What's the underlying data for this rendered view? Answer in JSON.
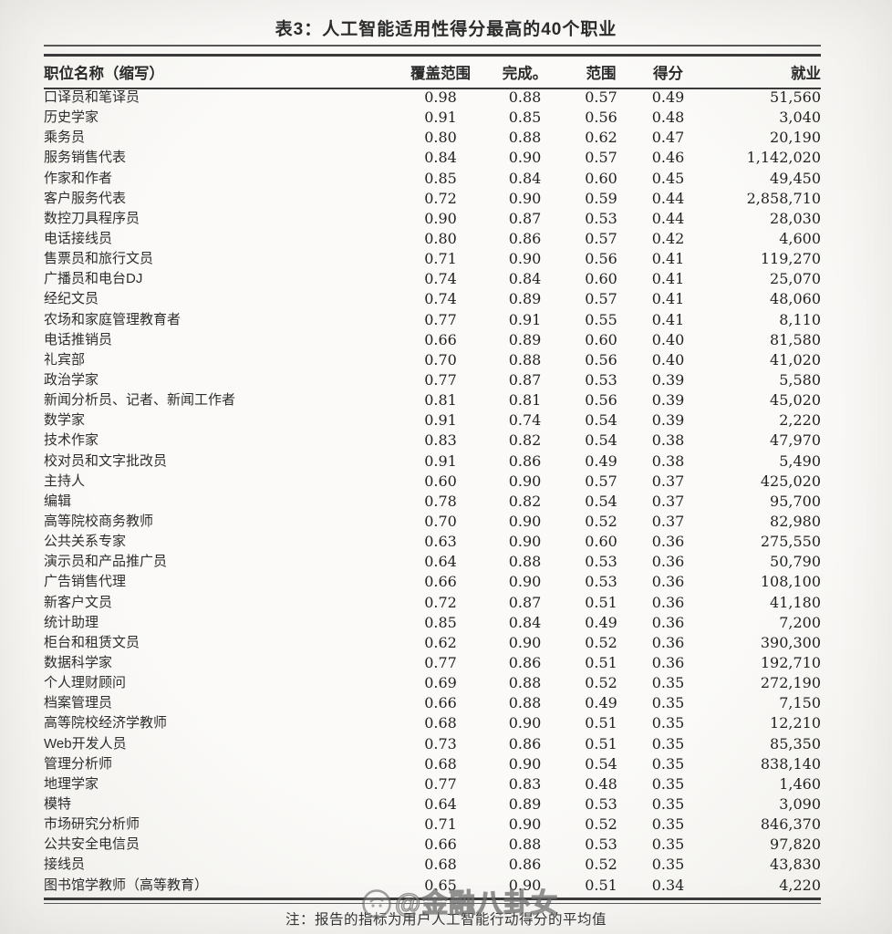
{
  "title": "表3：人工智能适用性得分最高的40个职业",
  "table": {
    "columns": [
      {
        "key": "name",
        "label": "职位名称（缩写）",
        "align": "left"
      },
      {
        "key": "coverage",
        "label": "覆盖范围",
        "align": "center"
      },
      {
        "key": "completion",
        "label": "完成。",
        "align": "center"
      },
      {
        "key": "scope",
        "label": "范围",
        "align": "center"
      },
      {
        "key": "score",
        "label": "得分",
        "align": "center"
      },
      {
        "key": "employment",
        "label": "就业",
        "align": "right"
      }
    ],
    "rows": [
      {
        "name": "口译员和笔译员",
        "coverage": "0.98",
        "completion": "0.88",
        "scope": "0.57",
        "score": "0.49",
        "employment": "51,560"
      },
      {
        "name": "历史学家",
        "coverage": "0.91",
        "completion": "0.85",
        "scope": "0.56",
        "score": "0.48",
        "employment": "3,040"
      },
      {
        "name": "乘务员",
        "coverage": "0.80",
        "completion": "0.88",
        "scope": "0.62",
        "score": "0.47",
        "employment": "20,190"
      },
      {
        "name": "服务销售代表",
        "coverage": "0.84",
        "completion": "0.90",
        "scope": "0.57",
        "score": "0.46",
        "employment": "1,142,020"
      },
      {
        "name": "作家和作者",
        "coverage": "0.85",
        "completion": "0.84",
        "scope": "0.60",
        "score": "0.45",
        "employment": "49,450"
      },
      {
        "name": "客户服务代表",
        "coverage": "0.72",
        "completion": "0.90",
        "scope": "0.59",
        "score": "0.44",
        "employment": "2,858,710"
      },
      {
        "name": "数控刀具程序员",
        "coverage": "0.90",
        "completion": "0.87",
        "scope": "0.53",
        "score": "0.44",
        "employment": "28,030"
      },
      {
        "name": "电话接线员",
        "coverage": "0.80",
        "completion": "0.86",
        "scope": "0.57",
        "score": "0.42",
        "employment": "4,600"
      },
      {
        "name": "售票员和旅行文员",
        "coverage": "0.71",
        "completion": "0.90",
        "scope": "0.56",
        "score": "0.41",
        "employment": "119,270"
      },
      {
        "name": "广播员和电台DJ",
        "coverage": "0.74",
        "completion": "0.84",
        "scope": "0.60",
        "score": "0.41",
        "employment": "25,070"
      },
      {
        "name": "经纪文员",
        "coverage": "0.74",
        "completion": "0.89",
        "scope": "0.57",
        "score": "0.41",
        "employment": "48,060"
      },
      {
        "name": "农场和家庭管理教育者",
        "coverage": "0.77",
        "completion": "0.91",
        "scope": "0.55",
        "score": "0.41",
        "employment": "8,110"
      },
      {
        "name": "电话推销员",
        "coverage": "0.66",
        "completion": "0.89",
        "scope": "0.60",
        "score": "0.40",
        "employment": "81,580"
      },
      {
        "name": "礼宾部",
        "coverage": "0.70",
        "completion": "0.88",
        "scope": "0.56",
        "score": "0.40",
        "employment": "41,020"
      },
      {
        "name": "政治学家",
        "coverage": "0.77",
        "completion": "0.87",
        "scope": "0.53",
        "score": "0.39",
        "employment": "5,580"
      },
      {
        "name": "新闻分析员、记者、新闻工作者",
        "coverage": "0.81",
        "completion": "0.81",
        "scope": "0.56",
        "score": "0.39",
        "employment": "45,020"
      },
      {
        "name": "数学家",
        "coverage": "0.91",
        "completion": "0.74",
        "scope": "0.54",
        "score": "0.39",
        "employment": "2,220"
      },
      {
        "name": "技术作家",
        "coverage": "0.83",
        "completion": "0.82",
        "scope": "0.54",
        "score": "0.38",
        "employment": "47,970"
      },
      {
        "name": "校对员和文字批改员",
        "coverage": "0.91",
        "completion": "0.86",
        "scope": "0.49",
        "score": "0.38",
        "employment": "5,490"
      },
      {
        "name": "主持人",
        "coverage": "0.60",
        "completion": "0.90",
        "scope": "0.57",
        "score": "0.37",
        "employment": "425,020"
      },
      {
        "name": "编辑",
        "coverage": "0.78",
        "completion": "0.82",
        "scope": "0.54",
        "score": "0.37",
        "employment": "95,700"
      },
      {
        "name": "高等院校商务教师",
        "coverage": "0.70",
        "completion": "0.90",
        "scope": "0.52",
        "score": "0.37",
        "employment": "82,980"
      },
      {
        "name": "公共关系专家",
        "coverage": "0.63",
        "completion": "0.90",
        "scope": "0.60",
        "score": "0.36",
        "employment": "275,550"
      },
      {
        "name": "演示员和产品推广员",
        "coverage": "0.64",
        "completion": "0.88",
        "scope": "0.53",
        "score": "0.36",
        "employment": "50,790"
      },
      {
        "name": "广告销售代理",
        "coverage": "0.66",
        "completion": "0.90",
        "scope": "0.53",
        "score": "0.36",
        "employment": "108,100"
      },
      {
        "name": "新客户文员",
        "coverage": "0.72",
        "completion": "0.87",
        "scope": "0.51",
        "score": "0.36",
        "employment": "41,180"
      },
      {
        "name": "统计助理",
        "coverage": "0.85",
        "completion": "0.84",
        "scope": "0.49",
        "score": "0.36",
        "employment": "7,200"
      },
      {
        "name": "柜台和租赁文员",
        "coverage": "0.62",
        "completion": "0.90",
        "scope": "0.52",
        "score": "0.36",
        "employment": "390,300"
      },
      {
        "name": "数据科学家",
        "coverage": "0.77",
        "completion": "0.86",
        "scope": "0.51",
        "score": "0.36",
        "employment": "192,710"
      },
      {
        "name": "个人理财顾问",
        "coverage": "0.69",
        "completion": "0.88",
        "scope": "0.52",
        "score": "0.35",
        "employment": "272,190"
      },
      {
        "name": "档案管理员",
        "coverage": "0.66",
        "completion": "0.88",
        "scope": "0.49",
        "score": "0.35",
        "employment": "7,150"
      },
      {
        "name": "高等院校经济学教师",
        "coverage": "0.68",
        "completion": "0.90",
        "scope": "0.51",
        "score": "0.35",
        "employment": "12,210"
      },
      {
        "name": "Web开发人员",
        "coverage": "0.73",
        "completion": "0.86",
        "scope": "0.51",
        "score": "0.35",
        "employment": "85,350"
      },
      {
        "name": "管理分析师",
        "coverage": "0.68",
        "completion": "0.90",
        "scope": "0.54",
        "score": "0.35",
        "employment": "838,140"
      },
      {
        "name": "地理学家",
        "coverage": "0.77",
        "completion": "0.83",
        "scope": "0.48",
        "score": "0.35",
        "employment": "1,460"
      },
      {
        "name": "模特",
        "coverage": "0.64",
        "completion": "0.89",
        "scope": "0.53",
        "score": "0.35",
        "employment": "3,090"
      },
      {
        "name": "市场研究分析师",
        "coverage": "0.71",
        "completion": "0.90",
        "scope": "0.52",
        "score": "0.35",
        "employment": "846,370"
      },
      {
        "name": "公共安全电信员",
        "coverage": "0.66",
        "completion": "0.88",
        "scope": "0.53",
        "score": "0.35",
        "employment": "97,820"
      },
      {
        "name": "接线员",
        "coverage": "0.68",
        "completion": "0.86",
        "scope": "0.52",
        "score": "0.35",
        "employment": "43,830"
      },
      {
        "name": "图书馆学教师（高等教育）",
        "coverage": "0.65",
        "completion": "0.90",
        "scope": "0.51",
        "score": "0.34",
        "employment": "4,220"
      }
    ]
  },
  "note": "注：报告的指标为用户人工智能行动得分的平均值",
  "watermark": {
    "handle": "@金融八卦女"
  }
}
